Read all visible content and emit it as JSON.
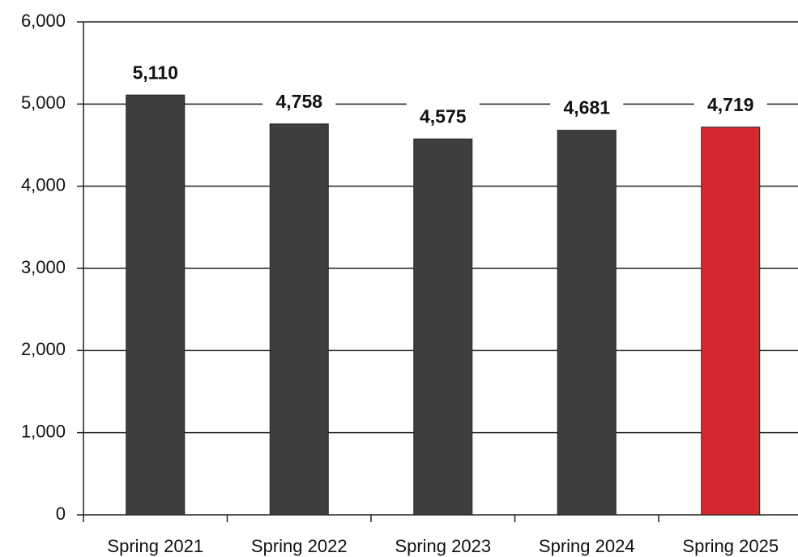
{
  "chart_data": {
    "type": "bar",
    "categories": [
      "Spring 2021",
      "Spring 2022",
      "Spring 2023",
      "Spring 2024",
      "Spring 2025"
    ],
    "values": [
      5110,
      4758,
      4575,
      4681,
      4719
    ],
    "value_labels": [
      "5,110",
      "4,758",
      "4,575",
      "4,681",
      "4,719"
    ],
    "colors": [
      "#3d403d",
      "#3d403d",
      "#3d403d",
      "#3d403d",
      "#d42a2f"
    ],
    "ylim": [
      0,
      6000
    ],
    "yticks": [
      0,
      {
        "value": 1000,
        "label": "1,000"
      },
      {
        "value": 2000,
        "label": "2,000"
      },
      {
        "value": 3000,
        "label": "3,000"
      },
      {
        "value": 4000,
        "label": "4,000"
      },
      {
        "value": 5000,
        "label": "5,000"
      },
      {
        "value": 6000,
        "label": "6,000"
      }
    ],
    "grid": true
  }
}
